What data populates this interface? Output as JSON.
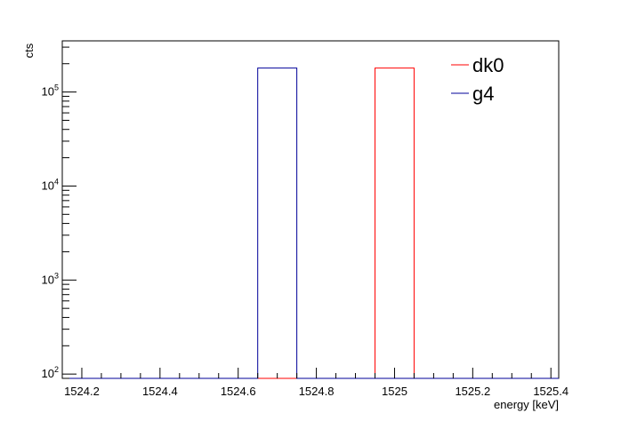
{
  "chart_data": {
    "type": "histogram",
    "title": "",
    "xlabel": "energy [keV]",
    "ylabel": "cts",
    "xlim": [
      1524.15,
      1525.42
    ],
    "ylim": [
      90,
      350000
    ],
    "yscale": "log",
    "x_ticks": [
      1524.2,
      1524.4,
      1524.6,
      1524.8,
      1525.0,
      1525.2,
      1525.4
    ],
    "x_tick_labels": [
      "1524.2",
      "1524.4",
      "1524.6",
      "1524.8",
      "1525",
      "1525.2",
      "1525.4"
    ],
    "y_ticks": [
      100,
      1000,
      10000,
      100000
    ],
    "y_tick_labels": [
      {
        "base": "10",
        "exp": "2"
      },
      {
        "base": "10",
        "exp": "3"
      },
      {
        "base": "10",
        "exp": "4"
      },
      {
        "base": "10",
        "exp": "5"
      }
    ],
    "grid": false,
    "legend_position": "top-right",
    "series": [
      {
        "name": "dk0",
        "color": "#ff0000",
        "bins": [
          {
            "x0": 1524.95,
            "x1": 1525.05,
            "value": 180000
          }
        ]
      },
      {
        "name": "g4",
        "color": "#000099",
        "bins": [
          {
            "x0": 1524.65,
            "x1": 1524.75,
            "value": 180000
          }
        ]
      }
    ]
  }
}
